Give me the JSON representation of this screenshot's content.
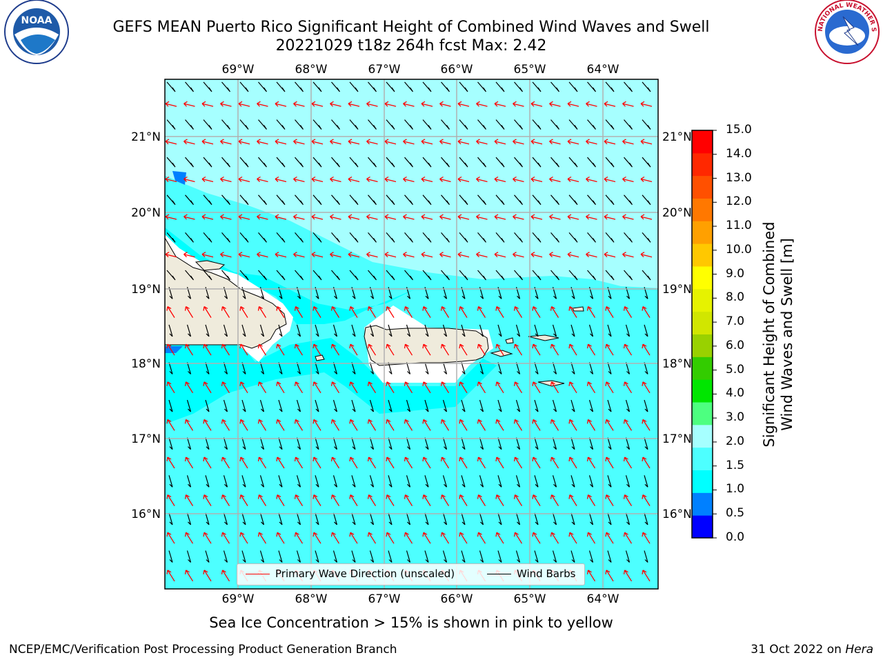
{
  "header": {
    "title_line1": "GEFS MEAN Puerto Rico Significant Height of Combined Wind Waves and Swell",
    "title_line2": "20221029 t18z 264h fcst   Max: 2.42"
  },
  "logos": {
    "left": "noaa-logo",
    "right": "national-weather-service-logo",
    "left_text": "NOAA",
    "right_text": "NATIONAL WEATHER SERVICE"
  },
  "map": {
    "lon_labels": [
      "69°W",
      "68°W",
      "67°W",
      "66°W",
      "65°W",
      "64°W"
    ],
    "lat_labels": [
      "21°N",
      "20°N",
      "19°N",
      "18°N",
      "17°N",
      "16°N"
    ],
    "ocean_color": "#4dffff",
    "land_color": "#efebdc"
  },
  "legend": {
    "primary_wave": "Primary Wave Direction (unscaled)",
    "wind_barbs": "Wind Barbs",
    "primary_wave_color": "#ff0000",
    "wind_barb_color": "#000000"
  },
  "colorbar": {
    "label_line1": "Significant Height of Combined",
    "label_line2": "Wind Waves and Swell [m]",
    "ticks": [
      "15.0",
      "14.0",
      "13.0",
      "12.0",
      "11.0",
      "10.0",
      "9.0",
      "8.0",
      "7.0",
      "6.0",
      "5.0",
      "4.0",
      "3.0",
      "2.0",
      "1.5",
      "1.0",
      "0.5",
      "0.0"
    ],
    "colors": [
      "#0000ff",
      "#0080ff",
      "#00ffff",
      "#4dffff",
      "#a6ffff",
      "#4dff80",
      "#00e600",
      "#33cc00",
      "#99d100",
      "#d1e600",
      "#e6f200",
      "#ffff00",
      "#ffc800",
      "#ffa000",
      "#ff7800",
      "#ff5000",
      "#ff2800",
      "#ff0000"
    ]
  },
  "notes": {
    "ice": "Sea Ice Concentration > 15% is shown in pink to yellow"
  },
  "footer": {
    "left": "NCEP/EMC/Verification Post Processing Product Generation Branch",
    "right_prefix": "31 Oct 2022 on",
    "right_host": "Hera"
  }
}
